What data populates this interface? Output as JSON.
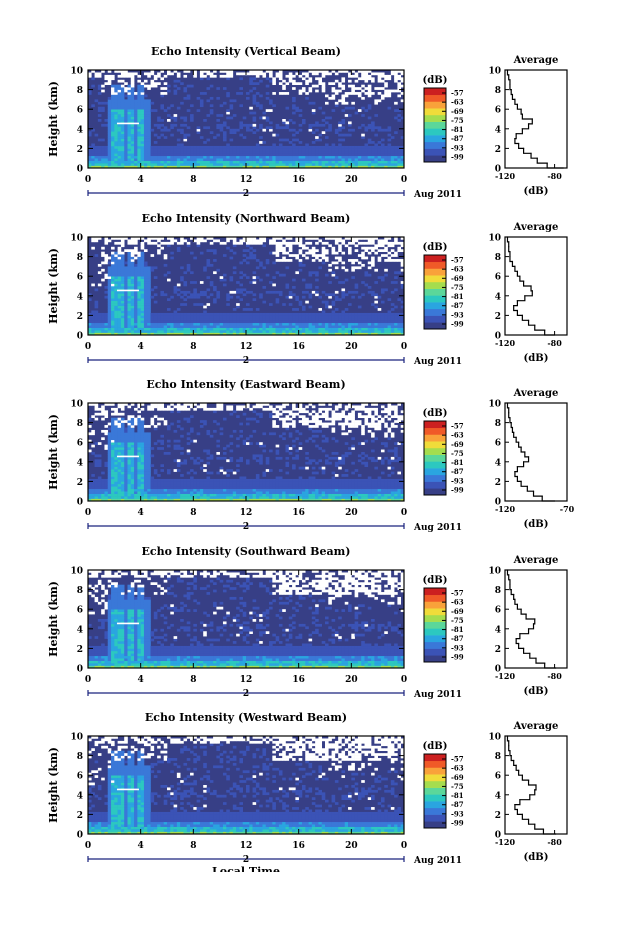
{
  "chart_data": [
    {
      "type": "heatmap",
      "title": "Echo Intensity (Vertical Beam)",
      "xlabel": "",
      "ylabel": "Height (km)",
      "xlim": [
        0,
        24
      ],
      "ylim": [
        0,
        10
      ],
      "x_ticks": [
        "0",
        "4",
        "8",
        "12",
        "16",
        "20",
        "0"
      ],
      "y_ticks": [
        "0",
        "2",
        "4",
        "6",
        "8",
        "10"
      ],
      "date_label": "2",
      "month_year": "Aug 2011",
      "colorbar": {
        "unit": "(dB)",
        "ticks": [
          "-57",
          "-63",
          "-69",
          "-75",
          "-81",
          "-87",
          "-93",
          "-99"
        ]
      },
      "profile": {
        "title": "Average",
        "xlabel": "(dB)",
        "x_ticks": [
          "-120",
          "-80"
        ],
        "xlim": [
          -120,
          -70
        ],
        "y_ticks": [
          "0",
          "2",
          "4",
          "6",
          "8",
          "10"
        ],
        "heights_km": [
          0.0,
          0.5,
          1.0,
          1.5,
          2.0,
          2.5,
          3.0,
          3.5,
          4.0,
          4.5,
          5.0,
          5.5,
          6.0,
          6.5,
          7.0,
          7.5,
          8.0,
          8.5,
          9.0,
          9.5,
          10.0
        ],
        "values_db": [
          -73,
          -86,
          -94,
          -99,
          -105,
          -109,
          -112,
          -111,
          -106,
          -101,
          -98,
          -106,
          -107,
          -110,
          -112,
          -114,
          -115,
          -116,
          -116,
          -117,
          -118
        ]
      }
    },
    {
      "type": "heatmap",
      "title": "Echo Intensity (Northward Beam)",
      "xlabel": "",
      "ylabel": "Height (km)",
      "xlim": [
        0,
        24
      ],
      "ylim": [
        0,
        10
      ],
      "x_ticks": [
        "0",
        "4",
        "8",
        "12",
        "16",
        "20",
        "0"
      ],
      "y_ticks": [
        "0",
        "2",
        "4",
        "6",
        "8",
        "10"
      ],
      "date_label": "2",
      "month_year": "Aug 2011",
      "colorbar": {
        "unit": "(dB)",
        "ticks": [
          "-57",
          "-63",
          "-69",
          "-75",
          "-81",
          "-87",
          "-93",
          "-99"
        ]
      },
      "profile": {
        "title": "Average",
        "xlabel": "(dB)",
        "x_ticks": [
          "-120",
          "-80"
        ],
        "xlim": [
          -120,
          -70
        ],
        "y_ticks": [
          "0",
          "2",
          "4",
          "6",
          "8",
          "10"
        ],
        "heights_km": [
          0.0,
          0.5,
          1.0,
          1.5,
          2.0,
          2.5,
          3.0,
          3.5,
          4.0,
          4.5,
          5.0,
          5.5,
          6.0,
          6.5,
          7.0,
          7.5,
          8.0,
          8.5,
          9.0,
          9.5,
          10.0
        ],
        "values_db": [
          -80,
          -88,
          -96,
          -101,
          -106,
          -110,
          -113,
          -110,
          -104,
          -98,
          -99,
          -105,
          -108,
          -110,
          -112,
          -114,
          -116,
          -116,
          -117,
          -117,
          -118
        ]
      }
    },
    {
      "type": "heatmap",
      "title": "Echo Intensity (Eastward Beam)",
      "xlabel": "",
      "ylabel": "Height (km)",
      "xlim": [
        0,
        24
      ],
      "ylim": [
        0,
        10
      ],
      "x_ticks": [
        "0",
        "4",
        "8",
        "12",
        "16",
        "20",
        "0"
      ],
      "y_ticks": [
        "0",
        "2",
        "4",
        "6",
        "8",
        "10"
      ],
      "date_label": "2",
      "month_year": "Aug 2011",
      "colorbar": {
        "unit": "(dB)",
        "ticks": [
          "-57",
          "-63",
          "-69",
          "-75",
          "-81",
          "-87",
          "-93",
          "-99"
        ]
      },
      "profile": {
        "title": "Average",
        "xlabel": "(dB)",
        "x_ticks": [
          "-120",
          "-70"
        ],
        "xlim": [
          -120,
          -70
        ],
        "y_ticks": [
          "0",
          "2",
          "4",
          "6",
          "8",
          "10"
        ],
        "heights_km": [
          0.0,
          0.5,
          1.0,
          1.5,
          2.0,
          2.5,
          3.0,
          3.5,
          4.0,
          4.5,
          5.0,
          5.5,
          6.0,
          6.5,
          7.0,
          7.5,
          8.0,
          8.5,
          9.0,
          9.5,
          10.0
        ],
        "values_db": [
          -80,
          -90,
          -97,
          -102,
          -107,
          -110,
          -112,
          -110,
          -105,
          -101,
          -104,
          -107,
          -109,
          -111,
          -113,
          -114,
          -115,
          -116,
          -117,
          -117,
          -118
        ]
      }
    },
    {
      "type": "heatmap",
      "title": "Echo Intensity (Southward Beam)",
      "xlabel": "",
      "ylabel": "Height (km)",
      "xlim": [
        0,
        24
      ],
      "ylim": [
        0,
        10
      ],
      "x_ticks": [
        "0",
        "4",
        "8",
        "12",
        "16",
        "20",
        "0"
      ],
      "y_ticks": [
        "0",
        "2",
        "4",
        "6",
        "8",
        "10"
      ],
      "date_label": "2",
      "month_year": "Aug 2011",
      "colorbar": {
        "unit": "(dB)",
        "ticks": [
          "-57",
          "-63",
          "-69",
          "-75",
          "-81",
          "-87",
          "-93",
          "-99"
        ]
      },
      "profile": {
        "title": "Average",
        "xlabel": "(dB)",
        "x_ticks": [
          "-120",
          "-80"
        ],
        "xlim": [
          -120,
          -70
        ],
        "y_ticks": [
          "0",
          "2",
          "4",
          "6",
          "8",
          "10"
        ],
        "heights_km": [
          0.0,
          0.5,
          1.0,
          1.5,
          2.0,
          2.5,
          3.0,
          3.5,
          4.0,
          4.5,
          5.0,
          5.5,
          6.0,
          6.5,
          7.0,
          7.5,
          8.0,
          8.5,
          9.0,
          9.5,
          10.0
        ],
        "values_db": [
          -79,
          -88,
          -95,
          -100,
          -105,
          -109,
          -111,
          -108,
          -101,
          -97,
          -96,
          -103,
          -107,
          -110,
          -112,
          -113,
          -115,
          -116,
          -116,
          -117,
          -118
        ]
      }
    },
    {
      "type": "heatmap",
      "title": "Echo Intensity (Westward Beam)",
      "xlabel": "Local Time",
      "ylabel": "Height (km)",
      "xlim": [
        0,
        24
      ],
      "ylim": [
        0,
        10
      ],
      "x_ticks": [
        "0",
        "4",
        "8",
        "12",
        "16",
        "20",
        "0"
      ],
      "y_ticks": [
        "0",
        "2",
        "4",
        "6",
        "8",
        "10"
      ],
      "date_label": "2",
      "month_year": "Aug 2011",
      "colorbar": {
        "unit": "(dB)",
        "ticks": [
          "-57",
          "-63",
          "-69",
          "-75",
          "-81",
          "-87",
          "-93",
          "-99"
        ]
      },
      "profile": {
        "title": "Average",
        "xlabel": "(dB)",
        "x_ticks": [
          "-120",
          "-80"
        ],
        "xlim": [
          -120,
          -70
        ],
        "y_ticks": [
          "0",
          "2",
          "4",
          "6",
          "8",
          "10"
        ],
        "heights_km": [
          0.0,
          0.5,
          1.0,
          1.5,
          2.0,
          2.5,
          3.0,
          3.5,
          4.0,
          4.5,
          5.0,
          5.5,
          6.0,
          6.5,
          7.0,
          7.5,
          8.0,
          8.5,
          9.0,
          9.5,
          10.0
        ],
        "values_db": [
          -79,
          -89,
          -96,
          -101,
          -106,
          -110,
          -112,
          -108,
          -100,
          -96,
          -95,
          -101,
          -106,
          -109,
          -111,
          -113,
          -115,
          -116,
          -117,
          -117,
          -118
        ]
      }
    }
  ]
}
